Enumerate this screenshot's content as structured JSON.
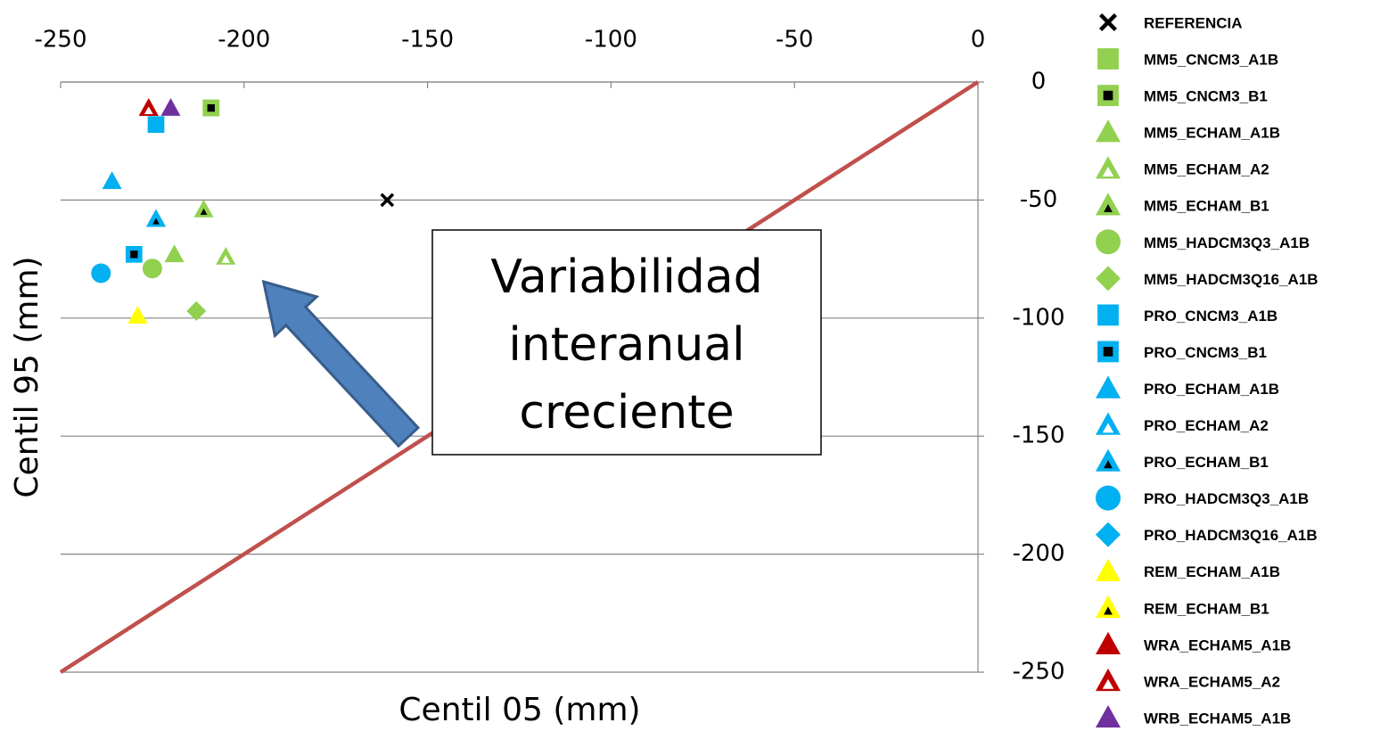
{
  "chart_data": {
    "type": "scatter",
    "x_label": "Centil 05 (mm)",
    "y_label": "Centil  95 (mm)",
    "xlim": [
      -250,
      0
    ],
    "ylim": [
      -250,
      0
    ],
    "xticks": [
      -250,
      -200,
      -150,
      -100,
      -50,
      0
    ],
    "yticks": [
      0,
      -50,
      -100,
      -150,
      -200,
      -250
    ],
    "grid": true,
    "reference_line": {
      "color": "#c0504d",
      "x": [
        -250,
        0
      ],
      "y": [
        -250,
        0
      ]
    },
    "annotation": [
      "Variabilidad",
      "interanual",
      "creciente"
    ],
    "series": [
      {
        "name": "REFERENCIA",
        "marker": "x",
        "color": "#000000",
        "x": [
          -161
        ],
        "y": [
          -50
        ]
      },
      {
        "name": "MM5_CNCM3_A1B",
        "marker": "square",
        "color": "#92d050",
        "x": [
          -209
        ],
        "y": [
          -11
        ]
      },
      {
        "name": "MM5_CNCM3_B1",
        "marker": "square",
        "color": "#92d050",
        "inner": "black",
        "x": [
          -209
        ],
        "y": [
          -11
        ]
      },
      {
        "name": "MM5_ECHAM_A1B",
        "marker": "triangle",
        "color": "#92d050",
        "x": [
          -219
        ],
        "y": [
          -73
        ]
      },
      {
        "name": "MM5_ECHAM_A2",
        "marker": "triangle",
        "color": "#92d050",
        "inner": "hollow",
        "x": [
          -205
        ],
        "y": [
          -74
        ]
      },
      {
        "name": "MM5_ECHAM_B1",
        "marker": "triangle",
        "color": "#92d050",
        "inner": "black",
        "x": [
          -211
        ],
        "y": [
          -54
        ]
      },
      {
        "name": "MM5_HADCM3Q3_A1B",
        "marker": "circle",
        "color": "#92d050",
        "x": [
          -225
        ],
        "y": [
          -79
        ]
      },
      {
        "name": "MM5_HADCM3Q16_A1B",
        "marker": "diamond",
        "color": "#92d050",
        "x": [
          -213
        ],
        "y": [
          -97
        ]
      },
      {
        "name": "PRO_CNCM3_A1B",
        "marker": "square",
        "color": "#00b0f0",
        "x": [
          -224
        ],
        "y": [
          -18
        ]
      },
      {
        "name": "PRO_CNCM3_B1",
        "marker": "square",
        "color": "#00b0f0",
        "inner": "black",
        "x": [
          -230
        ],
        "y": [
          -73
        ]
      },
      {
        "name": "PRO_ECHAM_A1B",
        "marker": "triangle",
        "color": "#00b0f0",
        "x": [
          -236
        ],
        "y": [
          -42
        ]
      },
      {
        "name": "PRO_ECHAM_A2",
        "marker": "triangle",
        "color": "#00b0f0",
        "inner": "hollow",
        "x": [
          -224
        ],
        "y": [
          -58
        ]
      },
      {
        "name": "PRO_ECHAM_B1",
        "marker": "triangle",
        "color": "#00b0f0",
        "inner": "black",
        "x": [
          -224
        ],
        "y": [
          -58
        ]
      },
      {
        "name": "PRO_HADCM3Q3_A1B",
        "marker": "circle",
        "color": "#00b0f0",
        "x": [
          -239
        ],
        "y": [
          -81
        ]
      },
      {
        "name": "PRO_HADCM3Q16_A1B",
        "marker": "diamond",
        "color": "#00b0f0",
        "x": [
          -239
        ],
        "y": [
          -81
        ]
      },
      {
        "name": "REM_ECHAM_A1B",
        "marker": "triangle",
        "color": "#ffff00",
        "x": [
          -229
        ],
        "y": [
          -99
        ]
      },
      {
        "name": "REM_ECHAM_B1",
        "marker": "triangle",
        "color": "#ffff00",
        "inner": "black",
        "x": [
          -226
        ],
        "y": [
          -11
        ]
      },
      {
        "name": "WRA_ECHAM5_A1B",
        "marker": "triangle",
        "color": "#c00000",
        "x": [
          -226
        ],
        "y": [
          -11
        ]
      },
      {
        "name": "WRA_ECHAM5_A2",
        "marker": "triangle",
        "color": "#c00000",
        "inner": "hollow",
        "x": [
          -226
        ],
        "y": [
          -11
        ]
      },
      {
        "name": "WRB_ECHAM5_A1B",
        "marker": "triangle",
        "color": "#7030a0",
        "x": [
          -220
        ],
        "y": [
          -11
        ]
      }
    ]
  }
}
